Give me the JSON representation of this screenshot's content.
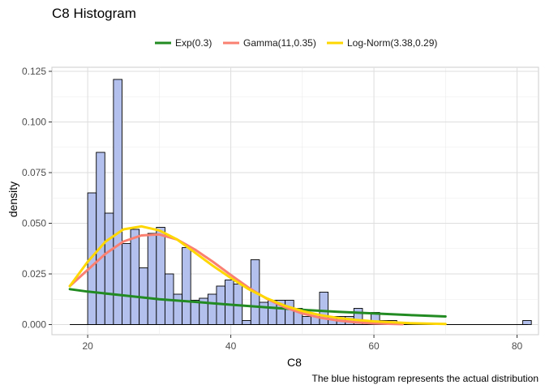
{
  "chart_data": {
    "type": "histogram",
    "title": "C8 Histogram",
    "xlabel": "C8",
    "ylabel": "density",
    "caption": "The blue histogram represents the actual distribution",
    "xlim": [
      15,
      83
    ],
    "ylim": [
      -0.005,
      0.127
    ],
    "x_ticks": [
      20,
      40,
      60,
      80
    ],
    "y_ticks": [
      0.0,
      0.025,
      0.05,
      0.075,
      0.1,
      0.125
    ],
    "y_tick_labels": [
      "0.000",
      "0.025",
      "0.050",
      "0.075",
      "0.100",
      "0.125"
    ],
    "grid": true,
    "legend_position": "top",
    "histogram": {
      "fill": "#b3c0ee",
      "stroke": "#000000",
      "bin_width": 1.2,
      "bins": [
        {
          "x0": 20.0,
          "density": 0.065
        },
        {
          "x0": 21.2,
          "density": 0.085
        },
        {
          "x0": 22.4,
          "density": 0.055
        },
        {
          "x0": 23.6,
          "density": 0.121
        },
        {
          "x0": 24.8,
          "density": 0.04
        },
        {
          "x0": 26.0,
          "density": 0.047
        },
        {
          "x0": 27.2,
          "density": 0.028
        },
        {
          "x0": 28.4,
          "density": 0.045
        },
        {
          "x0": 29.6,
          "density": 0.048
        },
        {
          "x0": 30.8,
          "density": 0.025
        },
        {
          "x0": 32.0,
          "density": 0.015
        },
        {
          "x0": 33.2,
          "density": 0.038
        },
        {
          "x0": 34.4,
          "density": 0.012
        },
        {
          "x0": 35.6,
          "density": 0.013
        },
        {
          "x0": 36.8,
          "density": 0.015
        },
        {
          "x0": 38.0,
          "density": 0.019
        },
        {
          "x0": 39.2,
          "density": 0.022
        },
        {
          "x0": 40.4,
          "density": 0.02
        },
        {
          "x0": 41.6,
          "density": 0.002
        },
        {
          "x0": 42.8,
          "density": 0.032
        },
        {
          "x0": 44.0,
          "density": 0.011
        },
        {
          "x0": 45.2,
          "density": 0.012
        },
        {
          "x0": 46.4,
          "density": 0.012
        },
        {
          "x0": 47.6,
          "density": 0.012
        },
        {
          "x0": 48.8,
          "density": 0.008
        },
        {
          "x0": 50.0,
          "density": 0.004
        },
        {
          "x0": 51.2,
          "density": 0.004
        },
        {
          "x0": 52.4,
          "density": 0.016
        },
        {
          "x0": 53.6,
          "density": 0.004
        },
        {
          "x0": 54.8,
          "density": 0.004
        },
        {
          "x0": 56.0,
          "density": 0.004
        },
        {
          "x0": 57.2,
          "density": 0.008
        },
        {
          "x0": 58.4,
          "density": 0.002
        },
        {
          "x0": 59.6,
          "density": 0.006
        },
        {
          "x0": 60.8,
          "density": 0.002
        },
        {
          "x0": 62.0,
          "density": 0.002
        },
        {
          "x0": 80.8,
          "density": 0.002
        }
      ]
    },
    "baseline": {
      "x_range": [
        17.5,
        81.5
      ],
      "y": 0.0
    },
    "series": [
      {
        "name": "Exp(0.3)",
        "color": "#228b22",
        "x": [
          17.5,
          20,
          25,
          30,
          35,
          40,
          45,
          50,
          55,
          60,
          65,
          70
        ],
        "y": [
          0.0175,
          0.0163,
          0.0144,
          0.0125,
          0.0112,
          0.0098,
          0.0085,
          0.0073,
          0.0063,
          0.0055,
          0.0047,
          0.004
        ]
      },
      {
        "name": "Gamma(11,0.35)",
        "color": "#fa8072",
        "x": [
          17.5,
          20,
          22.5,
          25,
          27.5,
          30,
          32.5,
          35,
          37.5,
          40,
          42.5,
          45,
          47.5,
          50,
          52.5,
          55,
          57.5,
          60,
          64
        ],
        "y": [
          0.019,
          0.027,
          0.035,
          0.041,
          0.044,
          0.0445,
          0.042,
          0.037,
          0.031,
          0.0245,
          0.0182,
          0.0128,
          0.0086,
          0.0055,
          0.0034,
          0.002,
          0.0011,
          0.0006,
          0.0002
        ]
      },
      {
        "name": "Log-Norm(3.38,0.29)",
        "color": "#ffd700",
        "x": [
          17.5,
          20,
          22.5,
          25,
          27.5,
          30,
          32.5,
          35,
          37.5,
          40,
          42.5,
          45,
          47.5,
          50,
          52.5,
          55,
          57.5,
          60,
          65,
          70
        ],
        "y": [
          0.019,
          0.031,
          0.041,
          0.047,
          0.0485,
          0.0465,
          0.042,
          0.0355,
          0.029,
          0.023,
          0.0175,
          0.013,
          0.0094,
          0.0067,
          0.0047,
          0.0033,
          0.0023,
          0.0016,
          0.0007,
          0.0003
        ]
      }
    ]
  }
}
